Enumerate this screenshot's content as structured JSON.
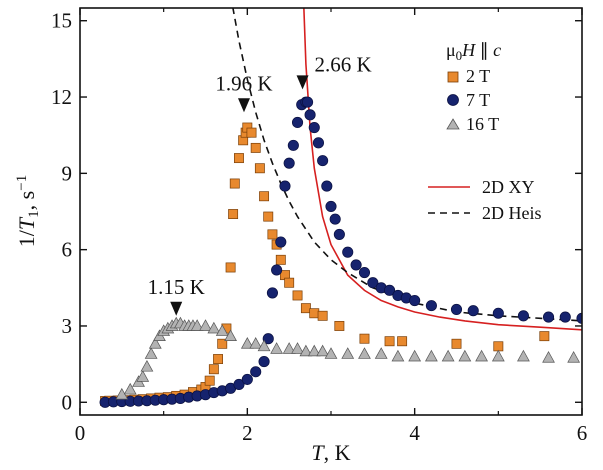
{
  "chart_data": {
    "type": "scatter",
    "xlabel": {
      "italic": "T",
      "rest": ", K"
    },
    "ylabel": {
      "prefix": "1/",
      "italic": "T",
      "sub": "1",
      "unit": ", s",
      "sup": "−1"
    },
    "xlim": [
      0,
      6
    ],
    "ylim": [
      -0.5,
      15.5
    ],
    "x_ticks": [
      0,
      2,
      4,
      6
    ],
    "y_ticks": [
      0,
      3,
      6,
      9,
      12,
      15
    ],
    "grid": false,
    "legend_title": {
      "pre": "μ",
      "sub": "0",
      "italic": "H",
      "post": " ∥ ",
      "italic2": "c"
    },
    "series": [
      {
        "name": "2 T",
        "marker": "square",
        "color": "#e8892e",
        "x": [
          0.3,
          0.35,
          0.45,
          0.55,
          0.65,
          0.75,
          0.85,
          0.95,
          1.05,
          1.15,
          1.25,
          1.35,
          1.45,
          1.5,
          1.55,
          1.6,
          1.65,
          1.7,
          1.75,
          1.8,
          1.83,
          1.85,
          1.9,
          1.95,
          1.98,
          2.0,
          2.05,
          2.1,
          2.15,
          2.2,
          2.25,
          2.3,
          2.35,
          2.4,
          2.45,
          2.5,
          2.6,
          2.7,
          2.8,
          2.9,
          3.1,
          3.4,
          3.7,
          3.85,
          4.5,
          5.0,
          5.55
        ],
        "y": [
          0.05,
          0.06,
          0.07,
          0.08,
          0.1,
          0.12,
          0.15,
          0.18,
          0.2,
          0.25,
          0.3,
          0.4,
          0.5,
          0.6,
          0.85,
          1.3,
          1.7,
          2.3,
          2.9,
          5.3,
          7.4,
          8.6,
          9.6,
          10.3,
          10.6,
          10.8,
          10.6,
          10.0,
          9.2,
          8.1,
          7.3,
          6.6,
          6.2,
          5.6,
          5.0,
          4.7,
          4.2,
          3.7,
          3.5,
          3.4,
          3.0,
          2.5,
          2.4,
          2.4,
          2.3,
          2.2,
          2.6
        ]
      },
      {
        "name": "7 T",
        "marker": "circle",
        "color": "#16236e",
        "x": [
          0.3,
          0.4,
          0.5,
          0.6,
          0.7,
          0.8,
          0.9,
          1.0,
          1.1,
          1.2,
          1.3,
          1.4,
          1.5,
          1.6,
          1.7,
          1.8,
          1.9,
          2.0,
          2.1,
          2.2,
          2.25,
          2.3,
          2.35,
          2.4,
          2.45,
          2.5,
          2.55,
          2.6,
          2.65,
          2.7,
          2.72,
          2.75,
          2.8,
          2.85,
          2.9,
          2.95,
          3.0,
          3.05,
          3.1,
          3.2,
          3.3,
          3.4,
          3.5,
          3.6,
          3.7,
          3.8,
          3.9,
          4.0,
          4.2,
          4.5,
          4.7,
          5.0,
          5.3,
          5.6,
          5.8,
          6.0
        ],
        "y": [
          0.0,
          0.02,
          0.03,
          0.04,
          0.05,
          0.06,
          0.08,
          0.1,
          0.12,
          0.15,
          0.2,
          0.25,
          0.3,
          0.38,
          0.45,
          0.55,
          0.7,
          0.9,
          1.2,
          1.6,
          2.5,
          4.3,
          5.2,
          6.3,
          8.5,
          9.4,
          10.1,
          11.0,
          11.7,
          11.8,
          11.8,
          11.3,
          10.8,
          10.2,
          9.5,
          8.5,
          7.7,
          7.2,
          6.6,
          5.9,
          5.4,
          5.1,
          4.7,
          4.5,
          4.4,
          4.2,
          4.1,
          4.0,
          3.8,
          3.65,
          3.6,
          3.5,
          3.4,
          3.35,
          3.35,
          3.3
        ]
      },
      {
        "name": "16 T",
        "marker": "triangle",
        "color": "#b3b3b3",
        "x": [
          0.5,
          0.6,
          0.7,
          0.75,
          0.8,
          0.85,
          0.9,
          0.95,
          1.0,
          1.05,
          1.1,
          1.15,
          1.2,
          1.25,
          1.3,
          1.35,
          1.4,
          1.5,
          1.6,
          1.7,
          1.8,
          2.0,
          2.1,
          2.2,
          2.35,
          2.5,
          2.6,
          2.7,
          2.8,
          2.9,
          3.0,
          3.2,
          3.4,
          3.6,
          3.8,
          4.0,
          4.2,
          4.4,
          4.6,
          4.8,
          5.0,
          5.3,
          5.6,
          5.9
        ],
        "y": [
          0.3,
          0.5,
          0.8,
          1.0,
          1.4,
          1.9,
          2.3,
          2.6,
          2.8,
          2.9,
          3.0,
          3.1,
          3.1,
          3.0,
          3.0,
          3.0,
          3.0,
          3.0,
          2.9,
          2.8,
          2.6,
          2.3,
          2.3,
          2.2,
          2.1,
          2.1,
          2.1,
          2.0,
          2.0,
          2.0,
          1.9,
          1.9,
          1.9,
          1.9,
          1.8,
          1.8,
          1.8,
          1.8,
          1.8,
          1.8,
          1.8,
          1.8,
          1.75,
          1.75
        ]
      }
    ],
    "fit_curves": [
      {
        "name": "2D XY",
        "style": "solid",
        "color": "#d62020",
        "x": [
          2.67,
          2.7,
          2.75,
          2.8,
          2.9,
          3.0,
          3.2,
          3.4,
          3.6,
          3.8,
          4.0,
          4.3,
          4.6,
          5.0,
          5.5,
          6.0
        ],
        "y": [
          16.0,
          13.3,
          10.8,
          9.2,
          7.3,
          6.2,
          5.0,
          4.4,
          4.0,
          3.75,
          3.55,
          3.35,
          3.2,
          3.05,
          2.95,
          2.85
        ]
      },
      {
        "name": "2D Heis",
        "style": "dashed",
        "color": "#111111",
        "x": [
          1.8,
          1.9,
          2.0,
          2.1,
          2.2,
          2.3,
          2.4,
          2.5,
          2.6,
          2.7,
          2.8,
          3.0,
          3.2,
          3.5,
          4.0,
          4.5,
          5.0,
          5.5,
          6.0
        ],
        "y": [
          16.0,
          14.2,
          12.7,
          11.4,
          10.3,
          9.4,
          8.6,
          7.9,
          7.3,
          6.8,
          6.3,
          5.6,
          5.1,
          4.5,
          3.9,
          3.55,
          3.4,
          3.3,
          3.2
        ]
      }
    ],
    "annotations": [
      {
        "text": "1.15 K",
        "x": 1.15,
        "y": 3.4
      },
      {
        "text": "1.96 K",
        "x": 1.96,
        "y": 11.4
      },
      {
        "text": "2.66 K",
        "x": 2.66,
        "y": 12.3
      }
    ]
  }
}
